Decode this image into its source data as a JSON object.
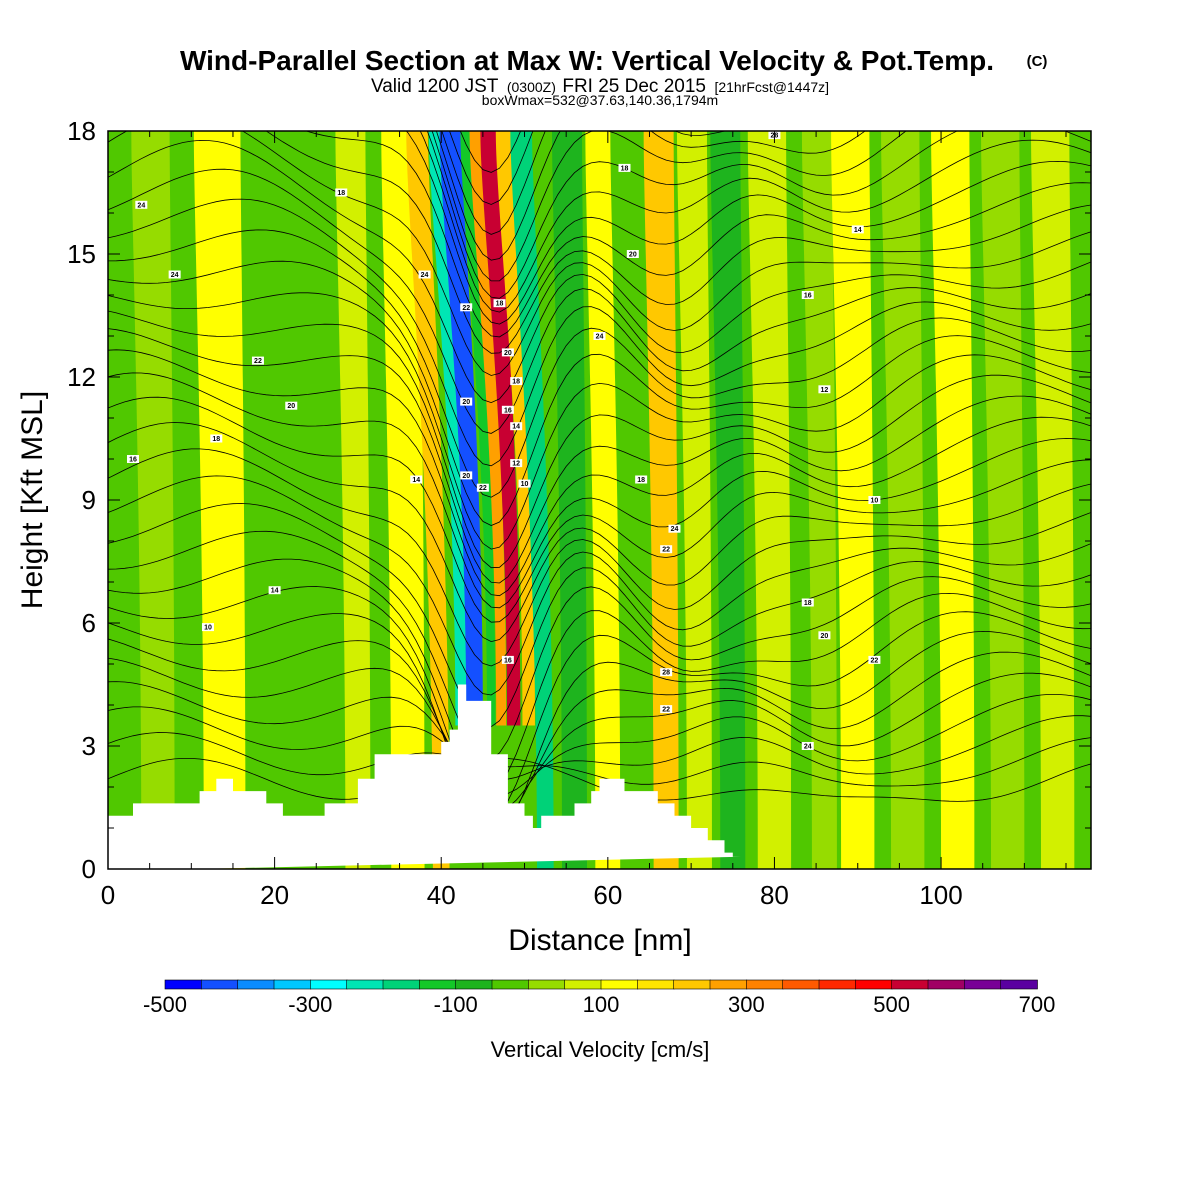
{
  "chart_data": {
    "type": "heatmap",
    "title": "Wind-Parallel Section at Max W: Vertical Velocity & Pot.Temp.",
    "title_mark": "(C)",
    "subtitle_line1_a": "Valid 1200 JST",
    "subtitle_line1_b": "(0300Z)",
    "subtitle_line1_c": "FRI 25 Dec 2015",
    "subtitle_line1_d": "[21hrFcst@1447z]",
    "subtitle_line2": "boxWmax=532@37.63,140.36,1794m",
    "xlabel": "Distance [nm]",
    "ylabel": "Height [Kft MSL]",
    "xlim": [
      0,
      118
    ],
    "ylim": [
      0,
      18
    ],
    "x_ticks": [
      "0",
      "20",
      "40",
      "60",
      "80",
      "100"
    ],
    "y_ticks": [
      "0",
      "3",
      "6",
      "9",
      "12",
      "15",
      "18"
    ],
    "colorbar": {
      "label": "Vertical Velocity [cm/s]",
      "tick_labels": [
        "-500",
        "-300",
        "-100",
        "100",
        "300",
        "500",
        "700"
      ],
      "colors": [
        "#0000ff",
        "#1450ff",
        "#0a8cff",
        "#00c8ff",
        "#00ffff",
        "#00e6b4",
        "#00d278",
        "#14c828",
        "#1eb41e",
        "#50c800",
        "#96dc00",
        "#d2f000",
        "#ffff00",
        "#ffe600",
        "#ffc800",
        "#ffa000",
        "#ff8200",
        "#ff5a00",
        "#ff2800",
        "#ff0000",
        "#c80032",
        "#a00064",
        "#780096",
        "#5a00a0"
      ]
    },
    "terrain_kft": {
      "x": [
        0,
        3,
        3,
        11,
        11,
        13,
        13,
        15,
        15,
        19,
        19,
        21,
        21,
        26,
        26,
        30,
        30,
        32,
        32,
        40,
        40,
        41,
        41,
        42,
        42,
        43,
        43,
        46,
        46,
        48,
        48,
        50,
        50,
        51,
        51,
        52,
        52,
        56,
        56,
        58,
        58,
        59,
        59,
        60,
        60,
        62,
        62,
        66,
        66,
        68,
        68,
        70,
        70,
        72,
        72,
        74,
        74,
        75,
        75,
        76,
        76,
        118
      ],
      "y": [
        1.3,
        1.3,
        1.6,
        1.6,
        1.9,
        1.9,
        2.2,
        2.2,
        1.9,
        1.9,
        1.6,
        1.6,
        1.3,
        1.3,
        1.6,
        1.6,
        2.2,
        2.2,
        2.8,
        2.8,
        3.1,
        3.1,
        3.4,
        3.4,
        4.5,
        4.5,
        4.1,
        4.1,
        2.8,
        2.8,
        1.6,
        1.6,
        1.3,
        1.3,
        1.0,
        1.0,
        1.3,
        1.3,
        1.6,
        1.6,
        1.9,
        1.9,
        2.2,
        2.2,
        2.2,
        2.2,
        1.9,
        1.9,
        1.6,
        1.6,
        1.3,
        1.3,
        1.0,
        1.0,
        0.7,
        0.7,
        0.4,
        0.4,
        0.3,
        0.3,
        0.3
      ]
    },
    "w_bands": [
      {
        "x": 6,
        "width": 4,
        "value": 20
      },
      {
        "x": 14,
        "width": 5,
        "value": 100
      },
      {
        "x": 22,
        "width": 4,
        "value": -20
      },
      {
        "x": 30,
        "width": 3,
        "value": 80
      },
      {
        "x": 36,
        "width": 4,
        "value": 140
      },
      {
        "x": 40,
        "width": 2,
        "value": 240
      },
      {
        "x": 42.5,
        "width": 1.6,
        "value": -250
      },
      {
        "x": 44,
        "width": 2,
        "value": -450
      },
      {
        "x": 46,
        "width": 1,
        "value": -150
      },
      {
        "x": 47.2,
        "width": 1.2,
        "value": 250
      },
      {
        "x": 48.7,
        "width": 1.6,
        "value": 520
      },
      {
        "x": 50.5,
        "width": 1.5,
        "value": 220
      },
      {
        "x": 52.5,
        "width": 2,
        "value": -200
      },
      {
        "x": 56,
        "width": 3,
        "value": -80
      },
      {
        "x": 60,
        "width": 3,
        "value": 120
      },
      {
        "x": 63,
        "width": 3,
        "value": -50
      },
      {
        "x": 67,
        "width": 3,
        "value": 200
      },
      {
        "x": 71,
        "width": 3,
        "value": 60
      },
      {
        "x": 75,
        "width": 3,
        "value": -60
      },
      {
        "x": 80,
        "width": 4,
        "value": 80
      },
      {
        "x": 86,
        "width": 3,
        "value": 30
      },
      {
        "x": 90,
        "width": 4,
        "value": 100
      },
      {
        "x": 96,
        "width": 4,
        "value": 20
      },
      {
        "x": 102,
        "width": 4,
        "value": 120
      },
      {
        "x": 108,
        "width": 4,
        "value": 10
      },
      {
        "x": 114,
        "width": 4,
        "value": 80
      }
    ],
    "theta_labels": [
      "24",
      "24",
      "22",
      "20",
      "18",
      "16",
      "14",
      "10",
      "18",
      "14",
      "24",
      "22",
      "20",
      "20",
      "22",
      "18",
      "20",
      "18",
      "16",
      "14",
      "12",
      "10",
      "16",
      "18",
      "22",
      "24",
      "24",
      "20",
      "18",
      "16",
      "14",
      "12",
      "10",
      "18",
      "20",
      "22",
      "24",
      "28",
      "22",
      "28"
    ]
  }
}
